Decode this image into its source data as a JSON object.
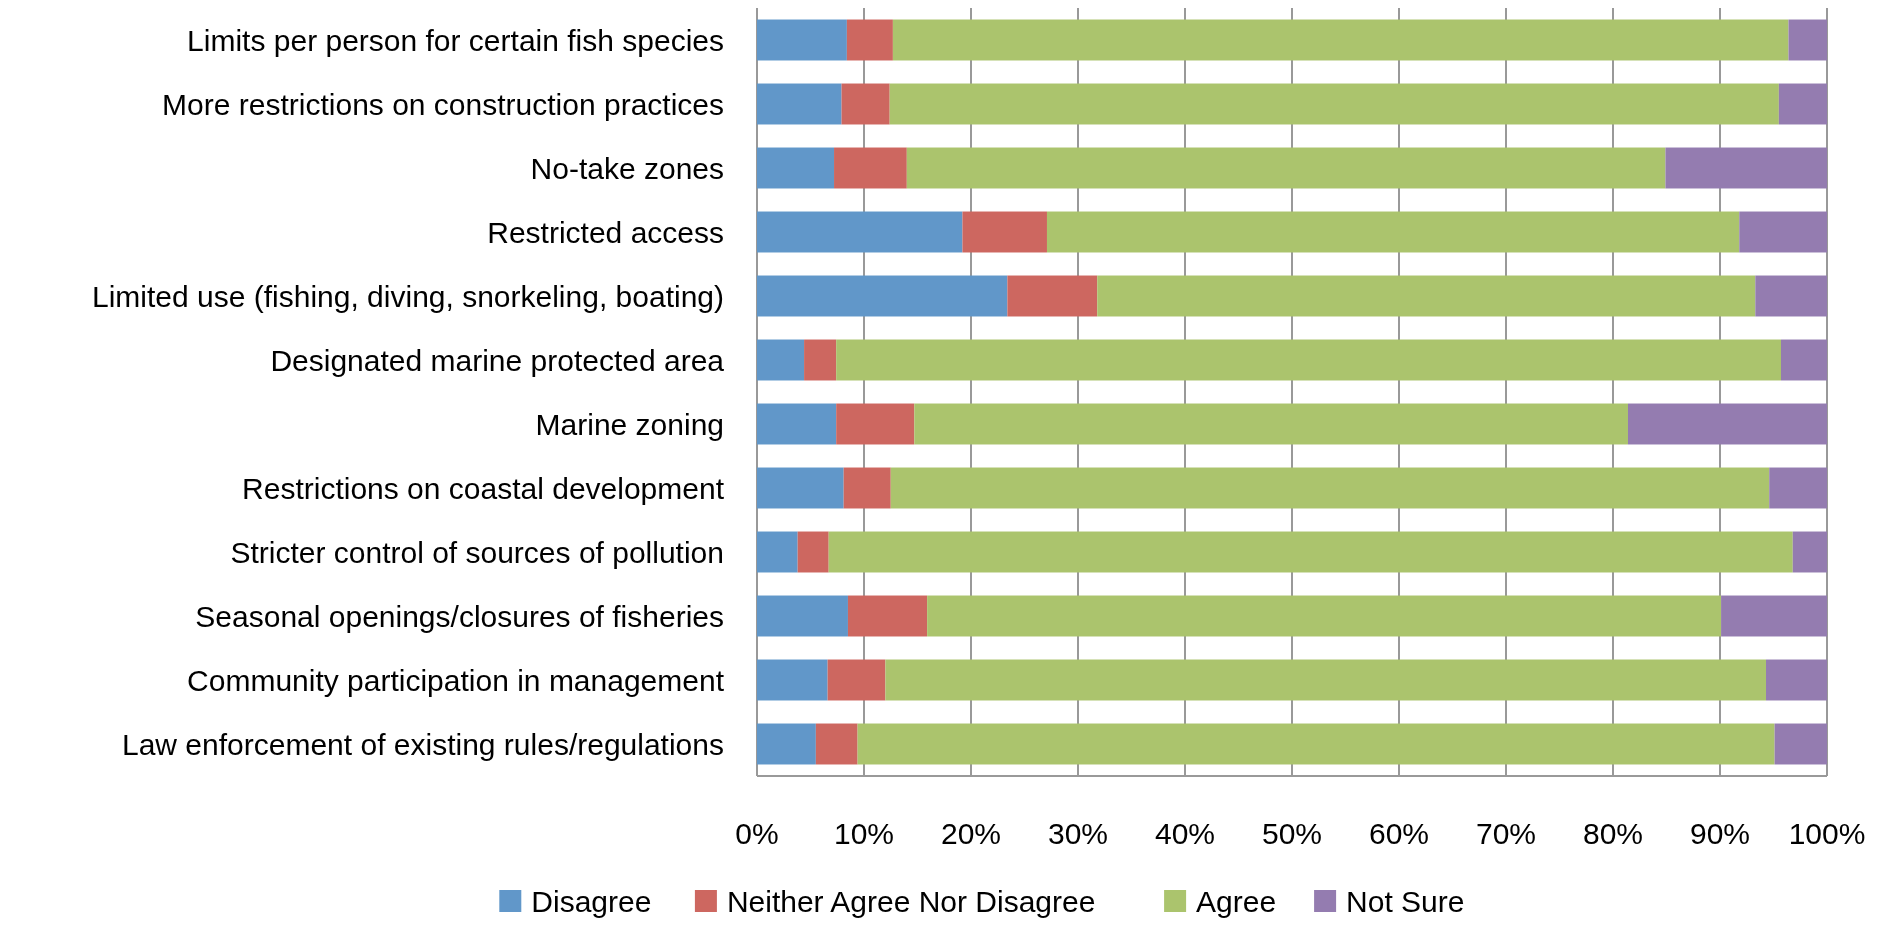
{
  "chart_data": {
    "type": "bar",
    "orientation": "horizontal",
    "stacked": true,
    "categories": [
      "Limits per person for certain fish species",
      "More restrictions on construction practices",
      "No-take zones",
      "Restricted access",
      "Limited use (fishing, diving, snorkeling, boating)",
      "Designated marine protected area",
      "Marine zoning",
      "Restrictions on coastal development",
      "Stricter control of sources of pollution",
      "Seasonal openings/closures of fisheries",
      "Community participation in management",
      "Law enforcement of existing rules/regulations"
    ],
    "series": [
      {
        "name": "Disagree",
        "color": "#6197c9",
        "values": [
          8.4,
          7.9,
          7.2,
          19.2,
          23.4,
          4.4,
          7.4,
          8.1,
          3.8,
          8.5,
          6.6,
          5.5
        ]
      },
      {
        "name": "Neither Agree Nor Disagree",
        "color": "#cd6760",
        "values": [
          4.3,
          4.5,
          6.8,
          7.9,
          8.4,
          3.0,
          7.3,
          4.4,
          2.9,
          7.4,
          5.4,
          3.9
        ]
      },
      {
        "name": "Agree",
        "color": "#abc46d",
        "values": [
          83.7,
          83.1,
          70.9,
          64.7,
          61.5,
          88.3,
          66.7,
          82.1,
          90.1,
          74.2,
          82.3,
          85.7
        ]
      },
      {
        "name": "Not Sure",
        "color": "#947cb0",
        "values": [
          3.6,
          4.5,
          15.1,
          8.2,
          6.7,
          4.3,
          18.6,
          5.4,
          3.2,
          9.9,
          5.7,
          4.9
        ]
      }
    ],
    "xlim": [
      0,
      100
    ],
    "xticks": [
      {
        "value": 0,
        "label": "0%"
      },
      {
        "value": 10,
        "label": "10%"
      },
      {
        "value": 20,
        "label": "20%"
      },
      {
        "value": 30,
        "label": "30%"
      },
      {
        "value": 40,
        "label": "40%"
      },
      {
        "value": 50,
        "label": "50%"
      },
      {
        "value": 60,
        "label": "60%"
      },
      {
        "value": 70,
        "label": "70%"
      },
      {
        "value": 80,
        "label": "80%"
      },
      {
        "value": 90,
        "label": "90%"
      },
      {
        "value": 100,
        "label": "100%"
      }
    ],
    "grid": "x",
    "legend": "bottom"
  }
}
